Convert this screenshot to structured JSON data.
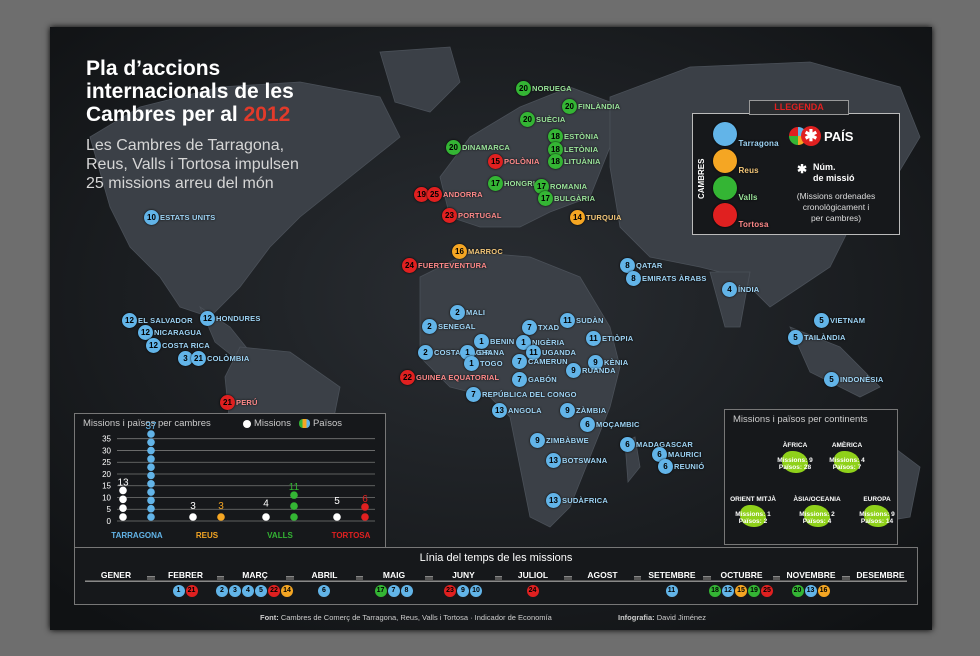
{
  "title": {
    "line1": "Pla d’accions",
    "line2": "internacionals de les",
    "line3": "Cambres per al",
    "year": "2012"
  },
  "subtitle": {
    "line1": "Les Cambres de Tarragona,",
    "line2": "Reus, Valls i Tortosa impulsen",
    "line3": "25 missions arreu del món"
  },
  "colors": {
    "tarragona": "#62b4e8",
    "reus": "#f5a623",
    "valls": "#34b534",
    "tortosa": "#e02020"
  },
  "legend": {
    "header": "LLEGENDA",
    "side_label": "CAMBRES",
    "chambers": [
      "Tarragona",
      "Reus",
      "Valls",
      "Tortosa"
    ],
    "country_label": "PAÍS",
    "num_label_1": "Núm.",
    "num_label_2": "de missió",
    "note_1": "(Missions ordenades",
    "note_2": "cronològicament i",
    "note_3": "per cambres)"
  },
  "missions": [
    {
      "c": "tg",
      "n": "10",
      "name": "ESTATS UNITS"
    },
    {
      "c": "tg",
      "n": "12",
      "name": "EL SALVADOR"
    },
    {
      "c": "tg",
      "n": "12",
      "name": "HONDURES"
    },
    {
      "c": "tg",
      "n": "12",
      "name": "NICARAGUA"
    },
    {
      "c": "tg",
      "n": "12",
      "name": "COSTA RICA"
    },
    {
      "c": "tg",
      "n": "3",
      "n2": "21",
      "name": "COLÒMBIA"
    },
    {
      "c": "to",
      "n": "21",
      "name": "PERÚ"
    },
    {
      "c": "va",
      "n": "20",
      "name": "NORUEGA"
    },
    {
      "c": "va",
      "n": "20",
      "name": "FINLÀNDIA"
    },
    {
      "c": "va",
      "n": "20",
      "name": "SUÈCIA"
    },
    {
      "c": "va",
      "n": "20",
      "name": "DINAMARCA"
    },
    {
      "c": "va",
      "n": "18",
      "name": "ESTÒNIA"
    },
    {
      "c": "va",
      "n": "18",
      "name": "LETÒNIA"
    },
    {
      "c": "va",
      "n": "18",
      "name": "LITUÀNIA"
    },
    {
      "c": "to",
      "n": "15",
      "name": "POLÒNIA"
    },
    {
      "c": "va",
      "n": "17",
      "name": "HONGRIA"
    },
    {
      "c": "va",
      "n": "17",
      "name": "ROMANIA"
    },
    {
      "c": "va",
      "n": "17",
      "name": "BULGÀRIA"
    },
    {
      "c": "to",
      "n": "19",
      "n2": "25",
      "name": "ANDORRA"
    },
    {
      "c": "to",
      "n": "23",
      "name": "PORTUGAL"
    },
    {
      "c": "re",
      "n": "14",
      "name": "TURQUIA"
    },
    {
      "c": "re",
      "n": "16",
      "name": "MARROC"
    },
    {
      "c": "to",
      "n": "24",
      "name": "FUERTEVENTURA"
    },
    {
      "c": "tg",
      "n": "8",
      "name": "QATAR"
    },
    {
      "c": "tg",
      "n": "8",
      "name": "EMIRATS ÀRABS"
    },
    {
      "c": "tg",
      "n": "4",
      "name": "ÍNDIA"
    },
    {
      "c": "tg",
      "n": "2",
      "name": "MALI"
    },
    {
      "c": "tg",
      "n": "2",
      "name": "SENEGAL"
    },
    {
      "c": "tg",
      "n": "7",
      "name": "TXAD"
    },
    {
      "c": "tg",
      "n": "11",
      "name": "SUDÀN"
    },
    {
      "c": "tg",
      "n": "11",
      "name": "ETIÒPIA"
    },
    {
      "c": "tg",
      "n": "1",
      "name": "BENIN"
    },
    {
      "c": "tg",
      "n": "1",
      "name": "NIGÈRIA"
    },
    {
      "c": "tg",
      "n": "2",
      "name": "COSTA D’IVORI"
    },
    {
      "c": "tg",
      "n": "1",
      "name": "GHANA"
    },
    {
      "c": "tg",
      "n": "1",
      "name": "TOGO"
    },
    {
      "c": "tg",
      "n": "11",
      "name": "UGANDA"
    },
    {
      "c": "tg",
      "n": "7",
      "name": "CAMERUN"
    },
    {
      "c": "tg",
      "n": "9",
      "name": "KÈNIA"
    },
    {
      "c": "tg",
      "n": "9",
      "name": "RUANDA"
    },
    {
      "c": "to",
      "n": "22",
      "name": "GUINEA EQUATORIAL"
    },
    {
      "c": "tg",
      "n": "7",
      "name": "GABÓN"
    },
    {
      "c": "tg",
      "n": "7",
      "name": "REPÚBLICA DEL CONGO"
    },
    {
      "c": "tg",
      "n": "13",
      "name": "ANGOLA"
    },
    {
      "c": "tg",
      "n": "9",
      "name": "ZÀMBIA"
    },
    {
      "c": "tg",
      "n": "6",
      "name": "MOÇAMBIC"
    },
    {
      "c": "tg",
      "n": "9",
      "name": "ZIMBÀBWE"
    },
    {
      "c": "tg",
      "n": "6",
      "name": "MADAGASCAR"
    },
    {
      "c": "tg",
      "n": "6",
      "name": "MAURICI"
    },
    {
      "c": "tg",
      "n": "6",
      "name": "REUNIÓ"
    },
    {
      "c": "tg",
      "n": "13",
      "name": "BOTSWANA"
    },
    {
      "c": "tg",
      "n": "13",
      "name": "SUDÀFRICA"
    },
    {
      "c": "tg",
      "n": "5",
      "name": "VIETNAM"
    },
    {
      "c": "tg",
      "n": "5",
      "name": "TAILÀNDIA"
    },
    {
      "c": "tg",
      "n": "5",
      "name": "INDONÈSIA"
    }
  ],
  "chart_data": {
    "type": "bar",
    "title": "Missions i països per cambres",
    "legend": [
      "Missions",
      "Països"
    ],
    "categories": [
      "TARRAGONA",
      "REUS",
      "VALLS",
      "TORTOSA"
    ],
    "series": [
      {
        "name": "Missions",
        "values": [
          13,
          3,
          4,
          5
        ]
      },
      {
        "name": "Països",
        "values": [
          37,
          3,
          11,
          6
        ]
      }
    ],
    "yticks": [
      0,
      5,
      10,
      15,
      20,
      25,
      30,
      35
    ],
    "ylim": [
      0,
      37
    ]
  },
  "continents": {
    "title": "Missions i països per continents",
    "items": [
      {
        "name": "ÀFRICA",
        "missions_label": "Missions: 9",
        "countries_label": "Països: 28"
      },
      {
        "name": "AMÈRICA",
        "missions_label": "Missions: 4",
        "countries_label": "Països: 7"
      },
      {
        "name": "ORIENT MITJÀ",
        "missions_label": "Missions: 1",
        "countries_label": "Països: 2"
      },
      {
        "name": "ÀSIA/OCEANIA",
        "missions_label": "Missions: 2",
        "countries_label": "Països: 4"
      },
      {
        "name": "EUROPA",
        "missions_label": "Missions: 9",
        "countries_label": "Països: 14"
      }
    ]
  },
  "timeline": {
    "title": "Línia del temps de les missions",
    "months": [
      "GENER",
      "FEBRER",
      "MARÇ",
      "ABRIL",
      "MAIG",
      "JUNY",
      "JULIOL",
      "AGOST",
      "SETEMBRE",
      "OCTUBRE",
      "NOVEMBRE",
      "DESEMBRE"
    ],
    "entries": [
      {
        "month": "FEBRER",
        "items": [
          {
            "c": "tg",
            "n": "1"
          },
          {
            "c": "to",
            "n": "21"
          }
        ]
      },
      {
        "month": "MARÇ",
        "items": [
          {
            "c": "tg",
            "n": "2"
          },
          {
            "c": "tg",
            "n": "3"
          },
          {
            "c": "tg",
            "n": "4"
          },
          {
            "c": "tg",
            "n": "5"
          },
          {
            "c": "to",
            "n": "22"
          },
          {
            "c": "re",
            "n": "14"
          }
        ]
      },
      {
        "month": "ABRIL",
        "items": [
          {
            "c": "tg",
            "n": "6"
          }
        ]
      },
      {
        "month": "MAIG",
        "items": [
          {
            "c": "va",
            "n": "17"
          },
          {
            "c": "tg",
            "n": "7"
          },
          {
            "c": "tg",
            "n": "8"
          }
        ]
      },
      {
        "month": "JUNY",
        "items": [
          {
            "c": "to",
            "n": "23"
          },
          {
            "c": "tg",
            "n": "9"
          },
          {
            "c": "tg",
            "n": "10"
          }
        ]
      },
      {
        "month": "JULIOL",
        "items": [
          {
            "c": "to",
            "n": "24"
          }
        ]
      },
      {
        "month": "SETEMBRE",
        "items": [
          {
            "c": "tg",
            "n": "11"
          }
        ]
      },
      {
        "month": "OCTUBRE",
        "items": [
          {
            "c": "va",
            "n": "18"
          },
          {
            "c": "tg",
            "n": "12"
          },
          {
            "c": "re",
            "n": "15"
          },
          {
            "c": "va",
            "n": "19"
          },
          {
            "c": "to",
            "n": "25"
          }
        ]
      },
      {
        "month": "NOVEMBRE",
        "items": [
          {
            "c": "va",
            "n": "20"
          },
          {
            "c": "tg",
            "n": "13"
          },
          {
            "c": "re",
            "n": "16"
          }
        ]
      }
    ]
  },
  "footer": {
    "font_label": "Font:",
    "font_text": "Cambres de Comerç de Tarragona, Reus, Valls i Tortosa · Indicador de Economía",
    "info_label": "Infografia:",
    "info_text": "David Jiménez"
  }
}
